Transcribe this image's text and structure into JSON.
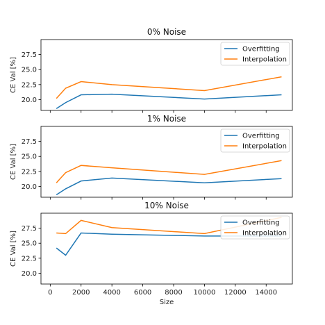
{
  "chart_data": [
    {
      "type": "line",
      "title": "0% Noise",
      "xlabel": "",
      "ylabel": "CE Val [%]",
      "xlim": [
        -600,
        15700
      ],
      "ylim": [
        18.2,
        30.0
      ],
      "yticks": [
        20.0,
        22.5,
        25.0,
        27.5
      ],
      "ytick_labels": [
        "20.0",
        "22.5",
        "25.0",
        "27.5"
      ],
      "x_tick_labels_visible": false,
      "legend_position": "top-right",
      "grid": false,
      "series": [
        {
          "name": "Overfitting",
          "color": "#1f77b4",
          "x": [
            400,
            1000,
            2000,
            4000,
            10000,
            15000
          ],
          "y": [
            18.5,
            19.5,
            20.8,
            20.9,
            20.1,
            20.8
          ]
        },
        {
          "name": "Interpolation",
          "color": "#ff7f0e",
          "x": [
            400,
            1000,
            2000,
            4000,
            10000,
            15000
          ],
          "y": [
            20.2,
            21.9,
            23.0,
            22.5,
            21.5,
            23.8
          ]
        }
      ]
    },
    {
      "type": "line",
      "title": "1% Noise",
      "xlabel": "",
      "ylabel": "CE Val [%]",
      "xlim": [
        -600,
        15700
      ],
      "ylim": [
        18.2,
        30.0
      ],
      "yticks": [
        20.0,
        22.5,
        25.0,
        27.5
      ],
      "ytick_labels": [
        "20.0",
        "22.5",
        "25.0",
        "27.5"
      ],
      "x_tick_labels_visible": false,
      "legend_position": "top-right",
      "grid": false,
      "series": [
        {
          "name": "Overfitting",
          "color": "#1f77b4",
          "x": [
            400,
            1000,
            2000,
            4000,
            10000,
            15000
          ],
          "y": [
            18.6,
            19.6,
            20.9,
            21.4,
            20.6,
            21.3
          ]
        },
        {
          "name": "Interpolation",
          "color": "#ff7f0e",
          "x": [
            400,
            1000,
            2000,
            4000,
            10000,
            15000
          ],
          "y": [
            20.6,
            22.3,
            23.5,
            23.1,
            22.0,
            24.3
          ]
        }
      ]
    },
    {
      "type": "line",
      "title": "10% Noise",
      "xlabel": "Size",
      "ylabel": "CE Val [%]",
      "xlim": [
        -600,
        15700
      ],
      "ylim": [
        18.2,
        30.0
      ],
      "yticks": [
        20.0,
        22.5,
        25.0,
        27.5
      ],
      "ytick_labels": [
        "20.0",
        "22.5",
        "25.0",
        "27.5"
      ],
      "xticks": [
        0,
        2000,
        4000,
        6000,
        8000,
        10000,
        12000,
        14000
      ],
      "xtick_labels": [
        "0",
        "2000",
        "4000",
        "6000",
        "8000",
        "10000",
        "12000",
        "14000"
      ],
      "x_tick_labels_visible": true,
      "legend_position": "top-right",
      "grid": false,
      "series": [
        {
          "name": "Overfitting",
          "color": "#1f77b4",
          "x": [
            400,
            1000,
            2000,
            4000,
            10000,
            15000
          ],
          "y": [
            24.2,
            23.0,
            26.7,
            26.5,
            26.2,
            26.2
          ]
        },
        {
          "name": "Interpolation",
          "color": "#ff7f0e",
          "x": [
            400,
            1000,
            2000,
            4000,
            10000,
            15000
          ],
          "y": [
            26.7,
            26.6,
            28.8,
            27.6,
            26.6,
            29.3
          ]
        }
      ]
    }
  ]
}
